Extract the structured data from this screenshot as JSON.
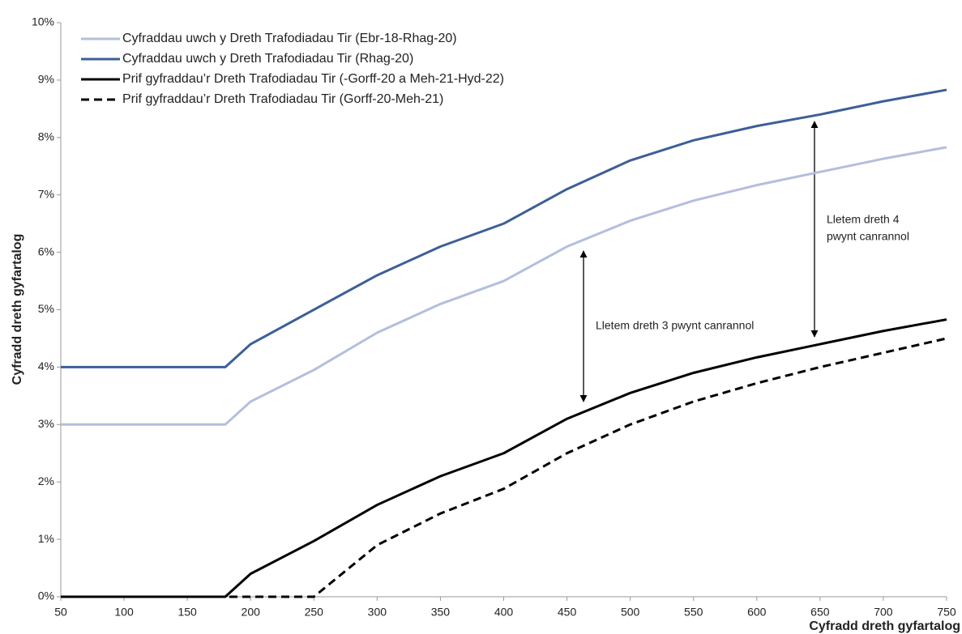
{
  "chart_data": {
    "type": "line",
    "x": [
      50,
      100,
      150,
      180,
      200,
      250,
      300,
      350,
      400,
      450,
      500,
      550,
      600,
      650,
      700,
      750
    ],
    "series": [
      {
        "name": "Cyfraddau uwch y Dreth Trafodiadau Tir (Ebr-18-Rhag-20)",
        "color": "#b4bedd",
        "dash": false,
        "values": [
          3,
          3,
          3,
          3,
          3.4,
          3.95,
          4.6,
          5.1,
          5.5,
          6.1,
          6.55,
          6.9,
          7.17,
          7.4,
          7.63,
          7.83
        ]
      },
      {
        "name": "Cyfraddau uwch y Dreth Trafodiadau Tir (Rhag-20)",
        "color": "#3d5f98",
        "dash": false,
        "values": [
          4,
          4,
          4,
          4,
          4.4,
          5.0,
          5.6,
          6.1,
          6.5,
          7.1,
          7.6,
          7.95,
          8.2,
          8.4,
          8.63,
          8.83
        ]
      },
      {
        "name": "Prif gyfraddau’r Dreth Trafodiadau Tir (-Gorff-20 a Meh-21-Hyd-22)",
        "color": "#000000",
        "dash": false,
        "values": [
          0,
          0,
          0,
          0,
          0.4,
          0.97,
          1.6,
          2.1,
          2.5,
          3.1,
          3.55,
          3.9,
          4.17,
          4.4,
          4.63,
          4.83
        ]
      },
      {
        "name": "Prif gyfraddau’r Dreth Trafodiadau Tir (Gorff-20-Meh-21)",
        "color": "#000000",
        "dash": true,
        "values": [
          0,
          0,
          0,
          0,
          0,
          0,
          0.9,
          1.45,
          1.88,
          2.5,
          3.0,
          3.4,
          3.72,
          4.0,
          4.25,
          4.5
        ]
      }
    ],
    "xlim": [
      50,
      750
    ],
    "xticks": [
      50,
      100,
      150,
      200,
      250,
      300,
      350,
      400,
      450,
      500,
      550,
      600,
      650,
      700,
      750
    ],
    "ylim": [
      0,
      10
    ],
    "yticks": [
      {
        "value": 0,
        "label": "0%"
      },
      {
        "value": 1,
        "label": "1%"
      },
      {
        "value": 2,
        "label": "2%"
      },
      {
        "value": 3,
        "label": "3%"
      },
      {
        "value": 4,
        "label": "4%"
      },
      {
        "value": 5,
        "label": "5%"
      },
      {
        "value": 6,
        "label": "6%"
      },
      {
        "value": 7,
        "label": "7%"
      },
      {
        "value": 8,
        "label": "8%"
      },
      {
        "value": 9,
        "label": "9%"
      },
      {
        "value": 10,
        "label": "10%"
      }
    ],
    "x_label": "Cyfradd dreth gyfartalog",
    "y_label": "Cyfradd dreth gyfartalog",
    "annotations": [
      {
        "lines": [
          "Lletem dreth 3 pwynt canrannol"
        ]
      },
      {
        "lines": [
          "Lletem dreth 4",
          "pwynt canrannol"
        ]
      }
    ]
  }
}
